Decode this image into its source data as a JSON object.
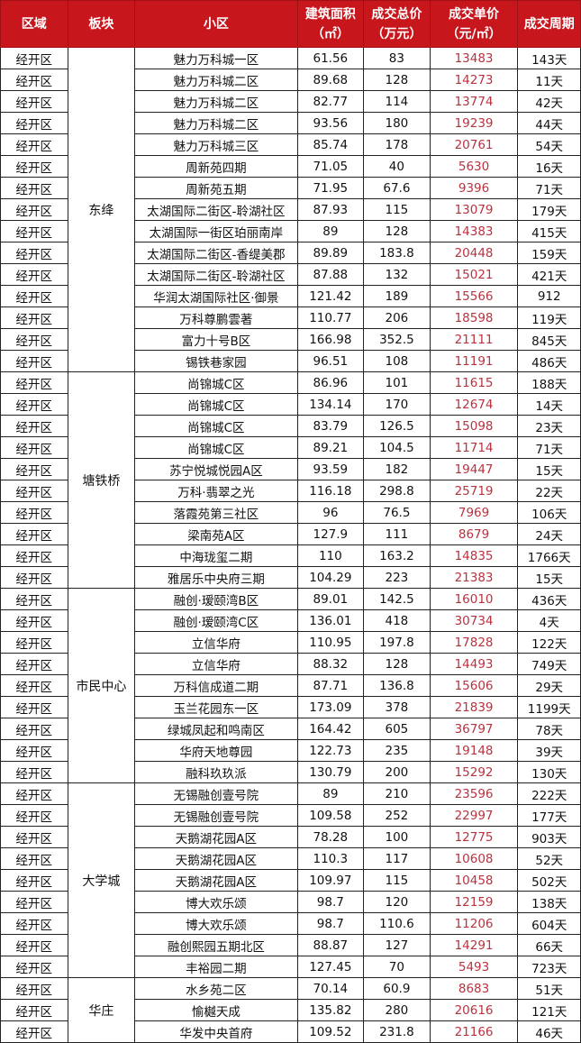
{
  "colors": {
    "header_bg": "#c8161d",
    "header_text": "#ffffff",
    "price_text": "#b8323f"
  },
  "headers": [
    {
      "line1": "区域",
      "line2": ""
    },
    {
      "line1": "板块",
      "line2": ""
    },
    {
      "line1": "小区",
      "line2": ""
    },
    {
      "line1": "建筑面积",
      "line2": "（㎡）"
    },
    {
      "line1": "成交总价",
      "line2": "（万元）"
    },
    {
      "line1": "成交单价",
      "line2": "（元/㎡）"
    },
    {
      "line1": "成交周期",
      "line2": ""
    }
  ],
  "blocks": [
    {
      "name": "东绛",
      "rows": 15
    },
    {
      "name": "塘铁桥",
      "rows": 10
    },
    {
      "name": "市民中心",
      "rows": 9
    },
    {
      "name": "大学城",
      "rows": 9
    },
    {
      "name": "华庄",
      "rows": 3
    }
  ],
  "rows": [
    [
      "经开区",
      "魅力万科城一区",
      "61.56",
      "83",
      "13483",
      "143天"
    ],
    [
      "经开区",
      "魅力万科城二区",
      "89.68",
      "128",
      "14273",
      "11天"
    ],
    [
      "经开区",
      "魅力万科城二区",
      "82.77",
      "114",
      "13774",
      "42天"
    ],
    [
      "经开区",
      "魅力万科城二区",
      "93.56",
      "180",
      "19239",
      "44天"
    ],
    [
      "经开区",
      "魅力万科城三区",
      "85.74",
      "178",
      "20761",
      "54天"
    ],
    [
      "经开区",
      "周新苑四期",
      "71.05",
      "40",
      "5630",
      "16天"
    ],
    [
      "经开区",
      "周新苑五期",
      "71.95",
      "67.6",
      "9396",
      "71天"
    ],
    [
      "经开区",
      "太湖国际二街区-聆湖社区",
      "87.93",
      "115",
      "13079",
      "179天"
    ],
    [
      "经开区",
      "太湖国际一街区珀丽南岸",
      "89",
      "128",
      "14383",
      "415天"
    ],
    [
      "经开区",
      "太湖国际二街区-香缇美郡",
      "89.89",
      "183.8",
      "20448",
      "159天"
    ],
    [
      "经开区",
      "太湖国际二街区-聆湖社区",
      "87.88",
      "132",
      "15021",
      "421天"
    ],
    [
      "经开区",
      "华润太湖国际社区·御景",
      "121.42",
      "189",
      "15566",
      "912"
    ],
    [
      "经开区",
      "万科尊鹏雲著",
      "110.77",
      "206",
      "18598",
      "119天"
    ],
    [
      "经开区",
      "富力十号B区",
      "166.98",
      "352.5",
      "21111",
      "845天"
    ],
    [
      "经开区",
      "锡铁巷家园",
      "96.51",
      "108",
      "11191",
      "486天"
    ],
    [
      "经开区",
      "尚锦城C区",
      "86.96",
      "101",
      "11615",
      "188天"
    ],
    [
      "经开区",
      "尚锦城C区",
      "134.14",
      "170",
      "12674",
      "14天"
    ],
    [
      "经开区",
      "尚锦城C区",
      "83.79",
      "126.5",
      "15098",
      "23天"
    ],
    [
      "经开区",
      "尚锦城C区",
      "89.21",
      "104.5",
      "11714",
      "71天"
    ],
    [
      "经开区",
      "苏宁悦城悦园A区",
      "93.59",
      "182",
      "19447",
      "15天"
    ],
    [
      "经开区",
      "万科·翡翠之光",
      "116.18",
      "298.8",
      "25719",
      "22天"
    ],
    [
      "经开区",
      "落霞苑第三社区",
      "96",
      "76.5",
      "7969",
      "106天"
    ],
    [
      "经开区",
      "梁南苑A区",
      "127.9",
      "111",
      "8679",
      "24天"
    ],
    [
      "经开区",
      "中海珑玺二期",
      "110",
      "163.2",
      "14835",
      "1766天"
    ],
    [
      "经开区",
      "雅居乐中央府三期",
      "104.29",
      "223",
      "21383",
      "15天"
    ],
    [
      "经开区",
      "融创·瑷颐湾B区",
      "89.01",
      "142.5",
      "16010",
      "436天"
    ],
    [
      "经开区",
      "融创·瑷颐湾C区",
      "136.01",
      "418",
      "30734",
      "4天"
    ],
    [
      "经开区",
      "立信华府",
      "110.95",
      "197.8",
      "17828",
      "122天"
    ],
    [
      "经开区",
      "立信华府",
      "88.32",
      "128",
      "14493",
      "749天"
    ],
    [
      "经开区",
      "万科信成道二期",
      "87.71",
      "136.8",
      "15606",
      "29天"
    ],
    [
      "经开区",
      "玉兰花园东一区",
      "173.09",
      "378",
      "21839",
      "1199天"
    ],
    [
      "经开区",
      "绿城凤起和鸣南区",
      "164.42",
      "605",
      "36797",
      "78天"
    ],
    [
      "经开区",
      "华府天地尊园",
      "122.73",
      "235",
      "19148",
      "39天"
    ],
    [
      "经开区",
      "融科玖玖派",
      "130.79",
      "200",
      "15292",
      "130天"
    ],
    [
      "经开区",
      "无锡融创壹号院",
      "89",
      "210",
      "23596",
      "222天"
    ],
    [
      "经开区",
      "无锡融创壹号院",
      "109.58",
      "252",
      "22997",
      "177天"
    ],
    [
      "经开区",
      "天鹅湖花园A区",
      "78.28",
      "100",
      "12775",
      "903天"
    ],
    [
      "经开区",
      "天鹅湖花园A区",
      "110.3",
      "117",
      "10608",
      "52天"
    ],
    [
      "经开区",
      "天鹅湖花园A区",
      "109.97",
      "115",
      "10458",
      "502天"
    ],
    [
      "经开区",
      "博大欢乐颂",
      "98.7",
      "120",
      "12159",
      "138天"
    ],
    [
      "经开区",
      "博大欢乐颂",
      "98.7",
      "110.6",
      "11206",
      "604天"
    ],
    [
      "经开区",
      "融创熙园五期北区",
      "88.87",
      "127",
      "14291",
      "66天"
    ],
    [
      "经开区",
      "丰裕园二期",
      "127.45",
      "70",
      "5493",
      "723天"
    ],
    [
      "经开区",
      "水乡苑二区",
      "70.14",
      "60.9",
      "8683",
      "51天"
    ],
    [
      "经开区",
      "愉樾天成",
      "135.82",
      "280",
      "20616",
      "121天"
    ],
    [
      "经开区",
      "华发中央首府",
      "109.52",
      "231.8",
      "21166",
      "46天"
    ]
  ]
}
